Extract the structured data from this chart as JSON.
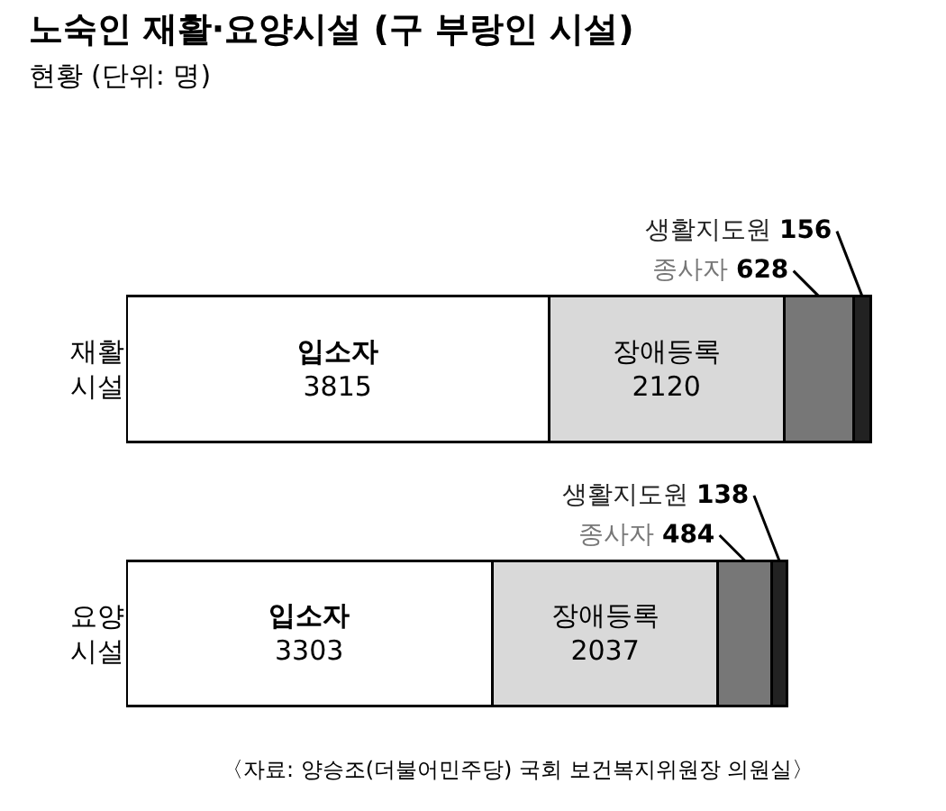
{
  "chart_data": {
    "type": "bar",
    "orientation": "horizontal",
    "stacked": true,
    "title": "노숙인 재활·요양시설 (구 부랑인 시설)",
    "subtitle": "현황 (단위: 명)",
    "categories": [
      "재활 시설",
      "요양 시설"
    ],
    "series": [
      {
        "name": "입소자",
        "color": "#ffffff",
        "values": [
          3815,
          3303
        ]
      },
      {
        "name": "장애등록",
        "color": "#d9d9d9",
        "values": [
          2120,
          2037
        ]
      },
      {
        "name": "종사자",
        "color": "#777777",
        "values": [
          628,
          484
        ]
      },
      {
        "name": "생활지도원",
        "color": "#222222",
        "values": [
          156,
          138
        ]
      }
    ],
    "data_labels": true,
    "tick_labels": "y",
    "legend": false,
    "annotations": [
      "〈자료: 양승조(더불어민주당) 국회 보건복지위원장 의원실〉"
    ]
  }
}
